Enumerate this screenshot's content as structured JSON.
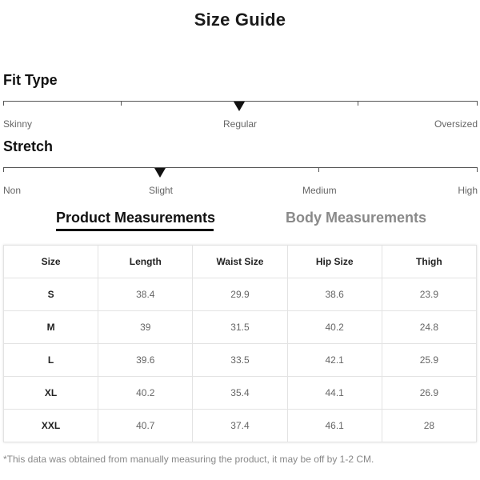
{
  "title": "Size Guide",
  "fit_type": {
    "label": "Fit Type",
    "options": [
      "Skinny",
      "Regular",
      "Oversized"
    ],
    "selected": "Regular"
  },
  "stretch": {
    "label": "Stretch",
    "options": [
      "Non",
      "Slight",
      "Medium",
      "High"
    ],
    "selected": "Slight"
  },
  "tabs": [
    {
      "label": "Product Measurements",
      "active": true
    },
    {
      "label": "Body Measurements",
      "active": false
    }
  ],
  "table": {
    "headers": [
      "Size",
      "Length",
      "Waist Size",
      "Hip Size",
      "Thigh"
    ],
    "rows": [
      [
        "S",
        "38.4",
        "29.9",
        "38.6",
        "23.9"
      ],
      [
        "M",
        "39",
        "31.5",
        "40.2",
        "24.8"
      ],
      [
        "L",
        "39.6",
        "33.5",
        "42.1",
        "25.9"
      ],
      [
        "XL",
        "40.2",
        "35.4",
        "44.1",
        "26.9"
      ],
      [
        "XXL",
        "40.7",
        "37.4",
        "46.1",
        "28"
      ]
    ]
  },
  "footnote": "*This data was obtained from manually measuring the product, it may be off by 1-2 CM."
}
